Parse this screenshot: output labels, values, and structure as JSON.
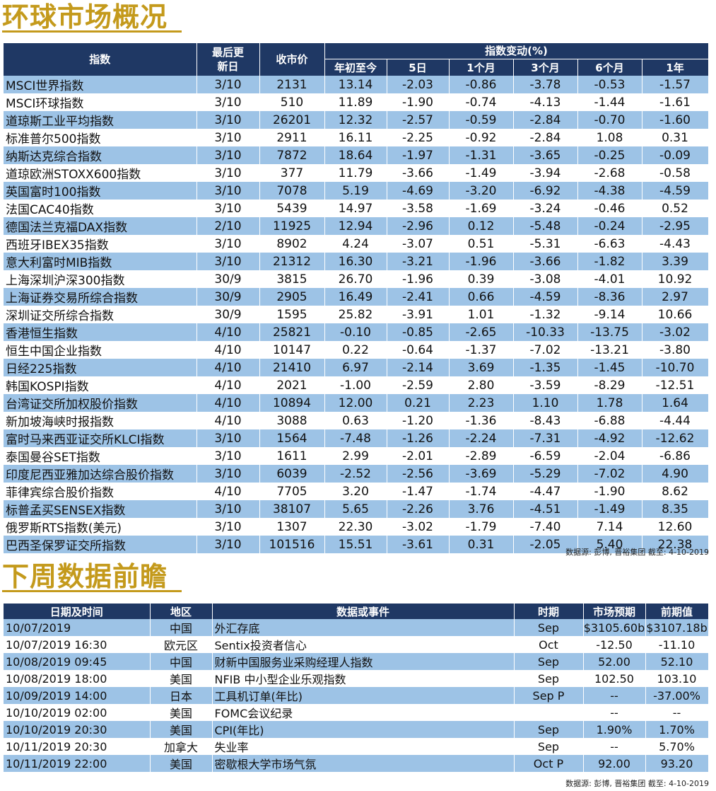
{
  "section1": {
    "title": "环球市场概况",
    "headers": {
      "index": "指数",
      "last_update": "最后更新日",
      "close": "收市价",
      "change_group": "指数变动(%)",
      "ytd": "年初至今",
      "d5": "5日",
      "m1": "1个月",
      "m3": "3个月",
      "m6": "6个月",
      "y1": "1年"
    },
    "rows": [
      [
        "MSCI世界指数",
        "3/10",
        "2131",
        "13.14",
        "-2.03",
        "-0.86",
        "-3.78",
        "-0.53",
        "-1.57"
      ],
      [
        "MSCI环球指数",
        "3/10",
        "510",
        "11.89",
        "-1.90",
        "-0.74",
        "-4.13",
        "-1.44",
        "-1.61"
      ],
      [
        "道琼斯工业平均指数",
        "3/10",
        "26201",
        "12.32",
        "-2.57",
        "-0.59",
        "-2.84",
        "-0.70",
        "-1.60"
      ],
      [
        "标准普尔500指数",
        "3/10",
        "2911",
        "16.11",
        "-2.25",
        "-0.92",
        "-2.84",
        "1.08",
        "0.31"
      ],
      [
        "纳斯达克综合指数",
        "3/10",
        "7872",
        "18.64",
        "-1.97",
        "-1.31",
        "-3.65",
        "-0.25",
        "-0.09"
      ],
      [
        "道琼欧洲STOXX600指数",
        "3/10",
        "377",
        "11.79",
        "-3.66",
        "-1.49",
        "-3.94",
        "-2.68",
        "-0.58"
      ],
      [
        "英国富时100指数",
        "3/10",
        "7078",
        "5.19",
        "-4.69",
        "-3.20",
        "-6.92",
        "-4.38",
        "-4.59"
      ],
      [
        "法国CAC40指数",
        "3/10",
        "5439",
        "14.97",
        "-3.58",
        "-1.69",
        "-3.24",
        "-0.46",
        "0.52"
      ],
      [
        "德国法兰克福DAX指数",
        "2/10",
        "11925",
        "12.94",
        "-2.96",
        "0.12",
        "-5.48",
        "-0.24",
        "-2.95"
      ],
      [
        "西班牙IBEX35指数",
        "3/10",
        "8902",
        "4.24",
        "-3.07",
        "0.51",
        "-5.31",
        "-6.63",
        "-4.43"
      ],
      [
        "意大利富时MIB指数",
        "3/10",
        "21312",
        "16.30",
        "-3.21",
        "-1.96",
        "-3.66",
        "-1.82",
        "3.39"
      ],
      [
        "上海深圳沪深300指数",
        "30/9",
        "3815",
        "26.70",
        "-1.96",
        "0.39",
        "-3.08",
        "-4.01",
        "10.92"
      ],
      [
        "上海证券交易所综合指数",
        "30/9",
        "2905",
        "16.49",
        "-2.41",
        "0.66",
        "-4.59",
        "-8.36",
        "2.97"
      ],
      [
        "深圳证交所综合指数",
        "30/9",
        "1595",
        "25.82",
        "-3.91",
        "1.01",
        "-1.32",
        "-9.14",
        "10.66"
      ],
      [
        "香港恒生指数",
        "4/10",
        "25821",
        "-0.10",
        "-0.85",
        "-2.65",
        "-10.33",
        "-13.75",
        "-3.02"
      ],
      [
        "恒生中国企业指数",
        "4/10",
        "10147",
        "0.22",
        "-0.64",
        "-1.37",
        "-7.02",
        "-13.21",
        "-3.80"
      ],
      [
        "日经225指数",
        "4/10",
        "21410",
        "6.97",
        "-2.14",
        "3.69",
        "-1.35",
        "-1.45",
        "-10.70"
      ],
      [
        "韩国KOSPI指数",
        "4/10",
        "2021",
        "-1.00",
        "-2.59",
        "2.80",
        "-3.59",
        "-8.29",
        "-12.51"
      ],
      [
        "台湾证交所加权股价指数",
        "4/10",
        "10894",
        "12.00",
        "0.21",
        "2.23",
        "1.10",
        "1.78",
        "1.64"
      ],
      [
        "新加坡海峡时报指数",
        "4/10",
        "3088",
        "0.63",
        "-1.20",
        "-1.36",
        "-8.43",
        "-6.88",
        "-4.44"
      ],
      [
        "富时马来西亚证交所KLCI指数",
        "3/10",
        "1564",
        "-7.48",
        "-1.26",
        "-2.24",
        "-7.31",
        "-4.92",
        "-12.62"
      ],
      [
        "泰国曼谷SET指数",
        "3/10",
        "1611",
        "2.99",
        "-2.01",
        "-2.89",
        "-6.59",
        "-2.04",
        "-6.86"
      ],
      [
        "印度尼西亚雅加达综合股价指数",
        "3/10",
        "6039",
        "-2.52",
        "-2.56",
        "-3.69",
        "-5.29",
        "-7.02",
        "4.90"
      ],
      [
        "菲律宾综合股价指数",
        "4/10",
        "7705",
        "3.20",
        "-1.47",
        "-1.74",
        "-4.47",
        "-1.90",
        "8.62"
      ],
      [
        "标普孟买SENSEX指数",
        "3/10",
        "38107",
        "5.65",
        "-2.26",
        "3.76",
        "-4.51",
        "-1.49",
        "8.35"
      ],
      [
        "俄罗斯RTS指数(美元)",
        "3/10",
        "1307",
        "22.30",
        "-3.02",
        "-1.79",
        "-7.40",
        "7.14",
        "12.60"
      ],
      [
        "巴西圣保罗证交所指数",
        "3/10",
        "101516",
        "15.51",
        "-3.61",
        "0.31",
        "-2.05",
        "5.40",
        "22.38"
      ]
    ],
    "source": "数据源: 彭博, 晋裕集团 截至: 4-10-2019"
  },
  "section2": {
    "title": "下周数据前瞻",
    "headers": {
      "datetime": "日期及时间",
      "region": "地区",
      "event": "数据或事件",
      "period": "时期",
      "forecast": "市场预期",
      "previous": "前期值"
    },
    "rows": [
      [
        "10/07/2019",
        "中国",
        "外汇存底",
        "Sep",
        "$3105.60b",
        "$3107.18b"
      ],
      [
        "10/07/2019 16:30",
        "欧元区",
        "Sentix投资者信心",
        "Oct",
        "-12.50",
        "-11.10"
      ],
      [
        "10/08/2019 09:45",
        "中国",
        "财新中国服务业采购经理人指数",
        "Sep",
        "52.00",
        "52.10"
      ],
      [
        "10/08/2019 18:00",
        "美国",
        "NFIB 中小型企业乐观指数",
        "Sep",
        "102.50",
        "103.10"
      ],
      [
        "10/09/2019 14:00",
        "日本",
        "工具机订单(年比)",
        "Sep P",
        "--",
        "-37.00%"
      ],
      [
        "10/10/2019 02:00",
        "美国",
        "FOMC会议纪录",
        "",
        "--",
        "--"
      ],
      [
        "10/10/2019 20:30",
        "美国",
        "CPI(年比)",
        "Sep",
        "1.90%",
        "1.70%"
      ],
      [
        "10/11/2019 20:30",
        "加拿大",
        "失业率",
        "Sep",
        "--",
        "5.70%"
      ],
      [
        "10/11/2019 22:00",
        "美国",
        "密歇根大学市场气氛",
        "Oct P",
        "92.00",
        "93.20"
      ]
    ],
    "source": "数据源: 彭博, 晋裕集团 截至: 4-10-2019"
  }
}
